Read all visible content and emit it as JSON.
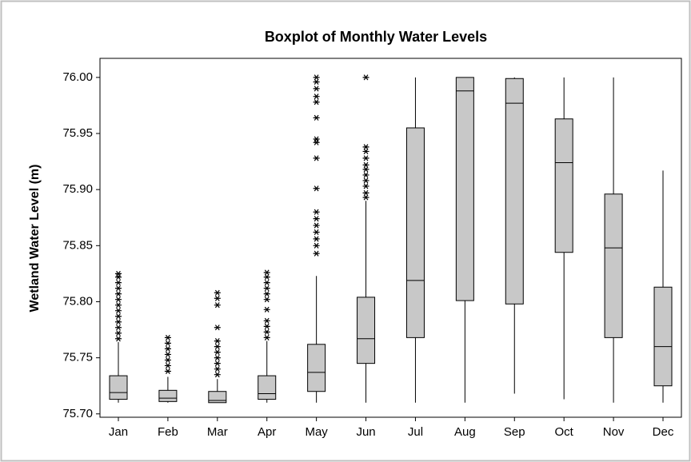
{
  "chart_data": {
    "type": "boxplot",
    "title": "Boxplot of Monthly Water Levels",
    "y_label": "Wetland Water Level (m)",
    "categories": [
      "Jan",
      "Feb",
      "Mar",
      "Apr",
      "May",
      "Jun",
      "Jul",
      "Aug",
      "Sep",
      "Oct",
      "Nov",
      "Dec"
    ],
    "color": "#c8c8c8",
    "ylim": [
      75.697,
      76.017
    ],
    "yticks": [
      {
        "value": 75.7,
        "label": "75.70"
      },
      75.75,
      {
        "value": 75.8,
        "label": "75.80"
      },
      75.85,
      {
        "value": 75.9,
        "label": "75.90"
      },
      75.95,
      {
        "value": 76,
        "label": "76.00"
      }
    ],
    "boxes": [
      {
        "whislo": 75.71,
        "q1": 75.713,
        "med": 75.719,
        "q3": 75.734,
        "whishi": 75.764,
        "outliers": [
          75.767,
          75.772,
          75.777,
          75.782,
          75.787,
          75.792,
          75.797,
          75.802,
          75.807,
          75.812,
          75.817,
          75.822,
          75.825
        ]
      },
      {
        "whislo": 75.71,
        "q1": 75.711,
        "med": 75.714,
        "q3": 75.721,
        "whishi": 75.733,
        "outliers": [
          75.738,
          75.743,
          75.748,
          75.753,
          75.758,
          75.763,
          75.768
        ]
      },
      {
        "whislo": 75.71,
        "q1": 75.71,
        "med": 75.712,
        "q3": 75.72,
        "whishi": 75.731,
        "outliers": [
          75.735,
          75.74,
          75.745,
          75.75,
          75.755,
          75.76,
          75.765,
          75.777,
          75.797,
          75.803,
          75.808
        ]
      },
      {
        "whislo": 75.71,
        "q1": 75.713,
        "med": 75.718,
        "q3": 75.734,
        "whishi": 75.765,
        "outliers": [
          75.768,
          75.773,
          75.778,
          75.783,
          75.793,
          75.802,
          75.807,
          75.812,
          75.817,
          75.822,
          75.826
        ]
      },
      {
        "whislo": 75.71,
        "q1": 75.72,
        "med": 75.737,
        "q3": 75.762,
        "whishi": 75.823,
        "outliers": [
          75.843,
          75.85,
          75.856,
          75.862,
          75.868,
          75.874,
          75.88,
          75.901,
          75.928,
          75.942,
          75.945,
          75.964,
          75.978,
          75.983,
          75.99,
          75.996,
          76
        ]
      },
      {
        "whislo": 75.71,
        "q1": 75.745,
        "med": 75.767,
        "q3": 75.804,
        "whishi": 75.89,
        "outliers": [
          75.893,
          75.897,
          75.903,
          75.908,
          75.913,
          75.918,
          75.922,
          75.928,
          75.934,
          75.938,
          76
        ]
      },
      {
        "whislo": 75.71,
        "q1": 75.768,
        "med": 75.819,
        "q3": 75.955,
        "whishi": 76,
        "outliers": []
      },
      {
        "whislo": 75.71,
        "q1": 75.801,
        "med": 75.988,
        "q3": 76,
        "whishi": 76,
        "outliers": []
      },
      {
        "whislo": 75.718,
        "q1": 75.798,
        "med": 75.977,
        "q3": 75.999,
        "whishi": 76,
        "outliers": []
      },
      {
        "whislo": 75.713,
        "q1": 75.844,
        "med": 75.924,
        "q3": 75.963,
        "whishi": 76,
        "outliers": []
      },
      {
        "whislo": 75.71,
        "q1": 75.768,
        "med": 75.848,
        "q3": 75.896,
        "whishi": 76,
        "outliers": []
      },
      {
        "whislo": 75.71,
        "q1": 75.725,
        "med": 75.76,
        "q3": 75.813,
        "whishi": 75.917,
        "outliers": []
      }
    ]
  }
}
